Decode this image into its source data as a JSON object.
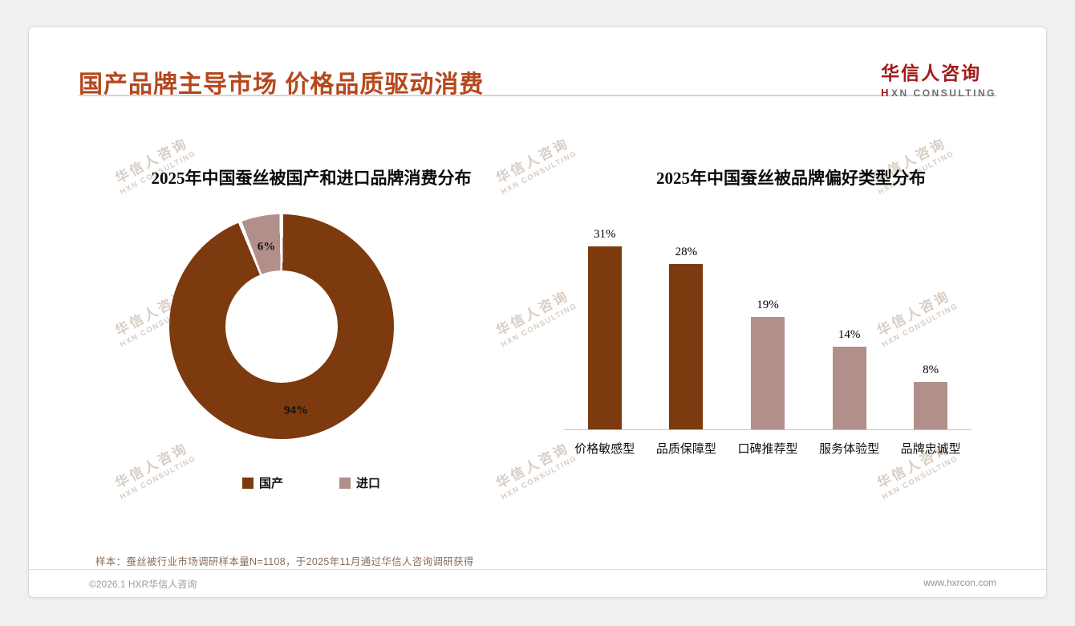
{
  "header": {
    "title": "国产品牌主导市场 价格品质驱动消费",
    "logo": {
      "cn": "华信人咨询",
      "en_icon": "H",
      "en": "XN CONSULTING"
    }
  },
  "watermark": {
    "cn": "华信人咨询",
    "en": "HXN CONSULTING"
  },
  "colors": {
    "primary_brown": "#7C3A0E",
    "secondary_mauve": "#B38F8B",
    "title_rust": "#B5481D",
    "logo_red": "#A11B1B"
  },
  "chart_data": [
    {
      "type": "pie",
      "title": "2025年中国蚕丝被国产和进口品牌消费分布",
      "donut": true,
      "legend_position": "bottom",
      "series": [
        {
          "name": "国产",
          "value": 94,
          "label": "94%",
          "color": "#7C3A0E"
        },
        {
          "name": "进口",
          "value": 6,
          "label": "6%",
          "color": "#B38F8B"
        }
      ]
    },
    {
      "type": "bar",
      "title": "2025年中国蚕丝被品牌偏好类型分布",
      "categories": [
        "价格敏感型",
        "品质保障型",
        "口碑推荐型",
        "服务体验型",
        "品牌忠诚型"
      ],
      "values": [
        31,
        28,
        19,
        14,
        8
      ],
      "unit": "%",
      "colors": [
        "#7C3A0E",
        "#7C3A0E",
        "#B38F8B",
        "#B38F8B",
        "#B38F8B"
      ],
      "ylim": [
        0,
        35
      ],
      "grid": false,
      "value_labels": "above"
    }
  ],
  "footnote": "样本：蚕丝被行业市场调研样本量N=1108，于2025年11月通过华信人咨询调研获得",
  "footer": {
    "copyright": "©2026.1 HXR华信人咨询",
    "website": "www.hxrcon.com"
  }
}
